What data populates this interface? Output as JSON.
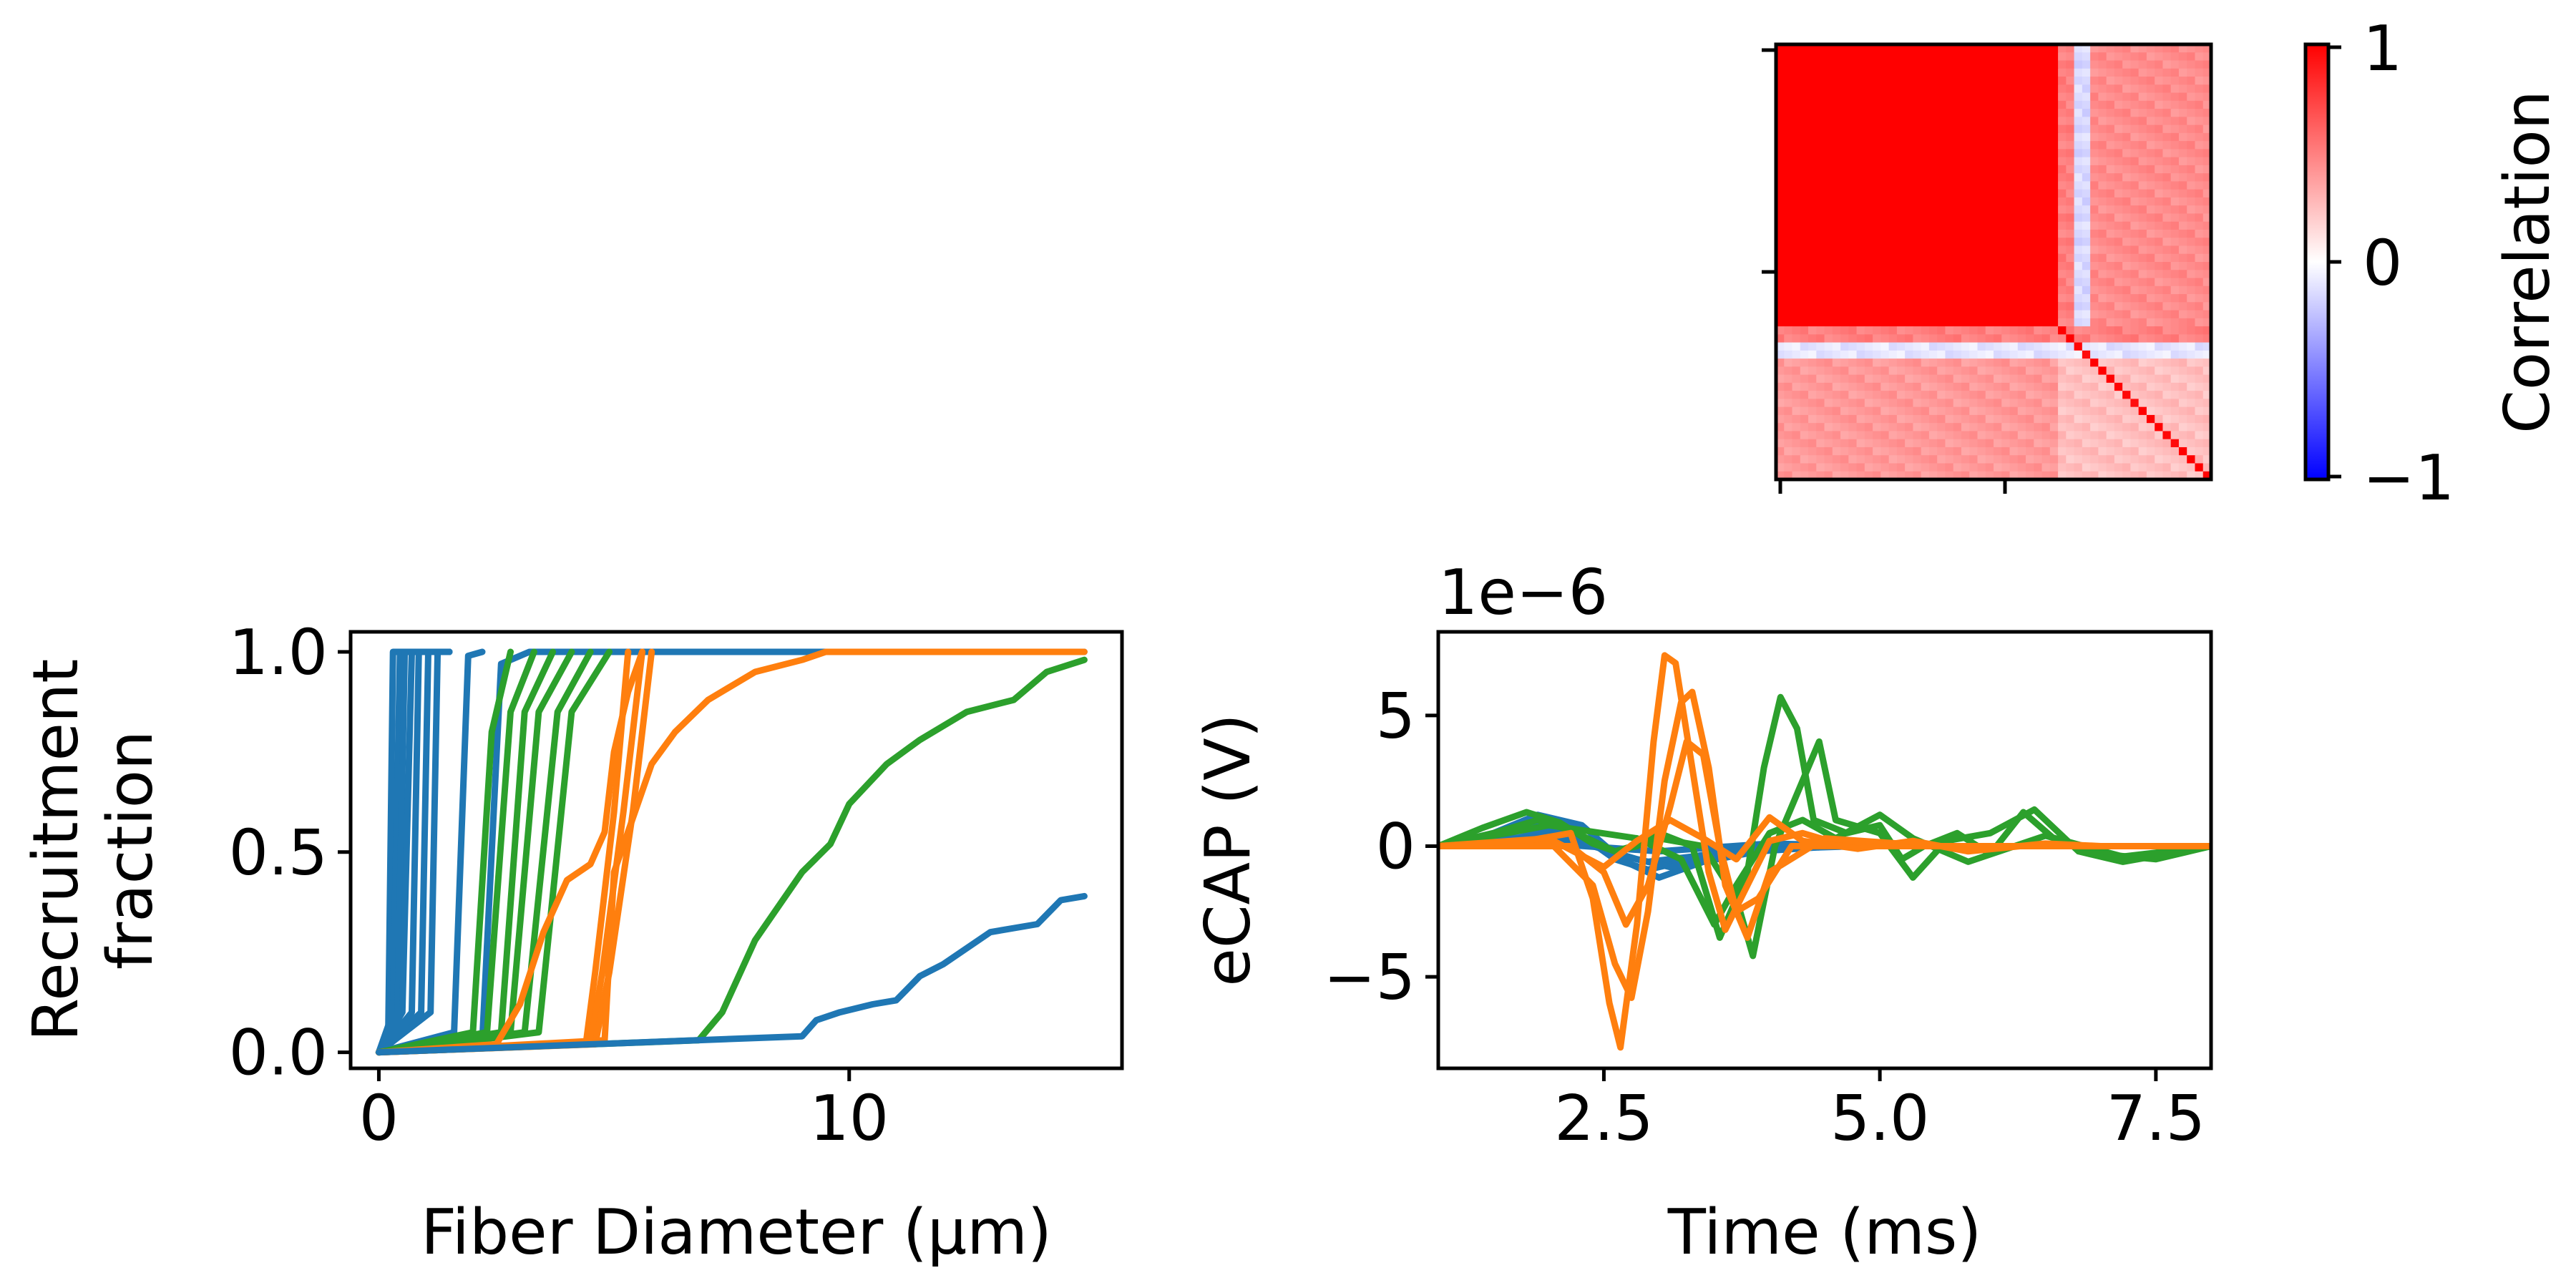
{
  "colors": {
    "blue": "#1f77b4",
    "orange": "#ff7f0e",
    "green": "#2ca02c",
    "corr_high": "#ff0000",
    "corr_zero": "#ffffff",
    "corr_low": "#0000ff"
  },
  "chart_data": [
    {
      "id": "correlation",
      "type": "heatmap",
      "title": "",
      "colorbar": {
        "label": "Correlation",
        "ticks": [
          1,
          0,
          -1
        ],
        "tick_labels": [
          "1",
          "0",
          "−1"
        ],
        "colormap": "bwr",
        "vmin": -1,
        "vmax": 1
      },
      "matrix_size": 54,
      "blocks": [
        {
          "rows": [
            0,
            35
          ],
          "cols": [
            0,
            35
          ],
          "value": 1.0
        },
        {
          "rows": [
            0,
            35
          ],
          "cols": [
            35,
            37
          ],
          "value": 0.5
        },
        {
          "rows": [
            0,
            35
          ],
          "cols": [
            37,
            39
          ],
          "value": -0.15
        },
        {
          "rows": [
            0,
            35
          ],
          "cols": [
            39,
            54
          ],
          "value": 0.45
        },
        {
          "rows": [
            35,
            37
          ],
          "cols": [
            0,
            54
          ],
          "value": 0.5
        },
        {
          "rows": [
            37,
            39
          ],
          "cols": [
            0,
            54
          ],
          "value": -0.1
        },
        {
          "rows": [
            39,
            54
          ],
          "cols": [
            0,
            35
          ],
          "value": 0.4
        },
        {
          "rows": [
            39,
            54
          ],
          "cols": [
            35,
            54
          ],
          "value": 0.25
        }
      ],
      "diagonal": 1.0
    },
    {
      "id": "recruitment",
      "type": "line",
      "xlabel": "Fiber Diameter (μm)",
      "ylabel": [
        "Recruitment",
        "fraction"
      ],
      "xlim": [
        -0.6,
        15.8
      ],
      "ylim": [
        -0.04,
        1.05
      ],
      "xticks": [
        0,
        10
      ],
      "yticks": [
        0.0,
        0.5,
        1.0
      ],
      "ytick_labels": [
        "0.0",
        "0.5",
        "1.0"
      ],
      "series": [
        {
          "color": "blue",
          "x": [
            0.0,
            0.2,
            0.3,
            0.4,
            1.5
          ],
          "y": [
            0.0,
            0.05,
            1.0,
            1.0,
            1.0
          ]
        },
        {
          "color": "blue",
          "x": [
            0.0,
            0.3,
            0.45,
            1.5
          ],
          "y": [
            0.0,
            0.1,
            1.0,
            1.0
          ]
        },
        {
          "color": "blue",
          "x": [
            0.0,
            0.4,
            0.55,
            1.5
          ],
          "y": [
            0.0,
            0.1,
            1.0,
            1.0
          ]
        },
        {
          "color": "blue",
          "x": [
            0.0,
            0.5,
            0.7,
            1.5
          ],
          "y": [
            0.0,
            0.1,
            1.0,
            1.0
          ]
        },
        {
          "color": "blue",
          "x": [
            0.0,
            0.7,
            0.85,
            1.5
          ],
          "y": [
            0.0,
            0.1,
            1.0,
            1.0
          ]
        },
        {
          "color": "blue",
          "x": [
            0.0,
            0.9,
            1.05,
            1.5
          ],
          "y": [
            0.0,
            0.1,
            1.0,
            1.0
          ]
        },
        {
          "color": "blue",
          "x": [
            0.0,
            1.1,
            1.25,
            1.5
          ],
          "y": [
            0.0,
            0.1,
            1.0,
            1.0
          ]
        },
        {
          "color": "blue",
          "x": [
            0.0,
            1.6,
            1.9,
            2.2
          ],
          "y": [
            0.0,
            0.05,
            0.99,
            1.0
          ]
        },
        {
          "color": "blue",
          "x": [
            0.0,
            2.2,
            2.6,
            3.2,
            9.5,
            15.0
          ],
          "y": [
            0.0,
            0.03,
            0.97,
            1.0,
            1.0,
            1.0
          ]
        },
        {
          "color": "green",
          "x": [
            0.0,
            2.0,
            2.4,
            2.8
          ],
          "y": [
            0.0,
            0.05,
            0.8,
            1.0
          ]
        },
        {
          "color": "green",
          "x": [
            0.0,
            2.3,
            2.8,
            3.3
          ],
          "y": [
            0.0,
            0.05,
            0.85,
            1.0
          ]
        },
        {
          "color": "green",
          "x": [
            0.0,
            2.6,
            3.1,
            3.7
          ],
          "y": [
            0.0,
            0.05,
            0.85,
            1.0
          ]
        },
        {
          "color": "green",
          "x": [
            0.0,
            2.8,
            3.4,
            4.1
          ],
          "y": [
            0.0,
            0.05,
            0.85,
            1.0
          ]
        },
        {
          "color": "green",
          "x": [
            0.0,
            3.1,
            3.8,
            4.5
          ],
          "y": [
            0.0,
            0.05,
            0.85,
            1.0
          ]
        },
        {
          "color": "green",
          "x": [
            0.0,
            3.4,
            4.1,
            4.9
          ],
          "y": [
            0.0,
            0.05,
            0.85,
            1.0
          ]
        },
        {
          "color": "green",
          "x": [
            0.0,
            6.8,
            7.3,
            8.0,
            9.0,
            9.6,
            10.0,
            10.8,
            11.5,
            12.5,
            13.5,
            14.2,
            15.0
          ],
          "y": [
            0.0,
            0.03,
            0.1,
            0.28,
            0.45,
            0.52,
            0.62,
            0.72,
            0.78,
            0.85,
            0.88,
            0.95,
            0.98
          ]
        },
        {
          "color": "orange",
          "x": [
            0.0,
            2.5,
            3.0,
            3.5,
            4.0,
            4.5,
            4.8,
            5.0,
            5.3,
            5.6
          ],
          "y": [
            0.0,
            0.02,
            0.12,
            0.3,
            0.43,
            0.47,
            0.55,
            0.75,
            0.9,
            1.0
          ]
        },
        {
          "color": "orange",
          "x": [
            0.0,
            4.4,
            4.6,
            5.0,
            5.3
          ],
          "y": [
            0.0,
            0.02,
            0.2,
            0.6,
            1.0
          ]
        },
        {
          "color": "orange",
          "x": [
            0.0,
            4.5,
            4.75,
            5.2,
            5.6
          ],
          "y": [
            0.0,
            0.02,
            0.2,
            0.6,
            1.0
          ]
        },
        {
          "color": "orange",
          "x": [
            0.0,
            4.6,
            4.9,
            5.4,
            5.8
          ],
          "y": [
            0.0,
            0.02,
            0.2,
            0.6,
            1.0
          ]
        },
        {
          "color": "orange",
          "x": [
            0.0,
            4.8,
            5.0,
            5.8,
            6.3,
            7.0,
            8.0,
            9.0,
            9.5,
            15.0
          ],
          "y": [
            0.0,
            0.03,
            0.45,
            0.72,
            0.8,
            0.88,
            0.95,
            0.98,
            1.0,
            1.0
          ]
        },
        {
          "color": "blue",
          "x": [
            0.0,
            9.0,
            9.3,
            9.8,
            10.5,
            11.0,
            11.5,
            12.0,
            13.0,
            14.0,
            14.5,
            15.0
          ],
          "y": [
            0.0,
            0.04,
            0.08,
            0.1,
            0.12,
            0.13,
            0.19,
            0.22,
            0.3,
            0.32,
            0.38,
            0.39
          ]
        }
      ]
    },
    {
      "id": "ecap",
      "type": "line",
      "xlabel": "Time (ms)",
      "ylabel": "eCAP (V)",
      "offset_label": "1e−6",
      "xlim": [
        1.0,
        8.0
      ],
      "ylim": [
        -8.5,
        8.2
      ],
      "xticks": [
        2.5,
        5.0,
        7.5
      ],
      "xtick_labels": [
        "2.5",
        "5.0",
        "7.5"
      ],
      "yticks": [
        -5,
        0,
        5
      ],
      "ytick_labels": [
        "−5",
        "0",
        "5"
      ],
      "series": [
        {
          "color": "blue",
          "x": [
            1.0,
            1.5,
            1.9,
            2.3,
            2.6,
            2.9,
            3.3,
            3.8,
            4.5,
            5.5,
            8.0
          ],
          "y": [
            0.0,
            0.5,
            1.2,
            0.8,
            -0.3,
            -0.6,
            -0.4,
            -0.1,
            0.0,
            0.0,
            0.0
          ]
        },
        {
          "color": "blue",
          "x": [
            1.0,
            1.5,
            1.9,
            2.3,
            2.6,
            2.9,
            3.3,
            3.8,
            4.5,
            5.5,
            8.0
          ],
          "y": [
            0.0,
            0.3,
            0.8,
            0.4,
            -0.5,
            -0.9,
            -0.5,
            -0.1,
            0.0,
            0.0,
            0.0
          ]
        },
        {
          "color": "blue",
          "x": [
            1.0,
            1.6,
            2.0,
            2.4,
            2.7,
            3.0,
            3.4,
            3.9,
            4.6,
            8.0
          ],
          "y": [
            0.0,
            0.2,
            0.6,
            0.2,
            -0.6,
            -1.2,
            -0.6,
            -0.2,
            0.0,
            0.0
          ]
        },
        {
          "color": "blue",
          "x": [
            1.0,
            1.6,
            2.0,
            2.4,
            2.8,
            3.1,
            3.5,
            4.0,
            4.8,
            8.0
          ],
          "y": [
            0.0,
            0.1,
            0.4,
            0.0,
            -0.5,
            -0.8,
            -0.4,
            -0.1,
            0.0,
            0.0
          ]
        },
        {
          "color": "blue",
          "x": [
            1.0,
            2.0,
            3.0,
            4.0,
            5.0,
            8.0
          ],
          "y": [
            0.0,
            0.1,
            -0.2,
            0.1,
            0.0,
            0.0
          ]
        },
        {
          "color": "green",
          "x": [
            1.0,
            1.4,
            1.8,
            2.1,
            2.4,
            2.6,
            2.8,
            3.0,
            3.3,
            3.55,
            3.8,
            3.95,
            4.1,
            4.25,
            4.4,
            4.7,
            5.0,
            5.2,
            5.4,
            5.7,
            6.0,
            6.3,
            6.6,
            7.0,
            7.5,
            8.0
          ],
          "y": [
            0.0,
            0.7,
            1.3,
            0.9,
            0.1,
            -0.2,
            0.0,
            0.5,
            0.0,
            -3.5,
            -1.0,
            3.0,
            5.7,
            4.5,
            1.0,
            0.5,
            0.8,
            -0.5,
            0.0,
            0.5,
            -0.3,
            1.3,
            0.2,
            -0.3,
            -0.5,
            0.0
          ]
        },
        {
          "color": "green",
          "x": [
            1.0,
            1.5,
            1.9,
            2.2,
            2.6,
            3.0,
            3.4,
            3.7,
            3.85,
            4.05,
            4.3,
            4.45,
            4.6,
            5.0,
            5.3,
            5.6,
            6.0,
            6.4,
            6.8,
            7.2,
            8.0
          ],
          "y": [
            0.0,
            0.5,
            1.0,
            0.6,
            -0.2,
            0.3,
            0.0,
            -2.0,
            -4.2,
            0.0,
            2.5,
            4.0,
            1.0,
            0.5,
            -1.2,
            0.2,
            0.5,
            1.4,
            -0.2,
            -0.6,
            0.0
          ]
        },
        {
          "color": "green",
          "x": [
            1.0,
            2.0,
            2.8,
            3.2,
            3.5,
            3.7,
            4.0,
            4.3,
            4.6,
            5.0,
            5.3,
            5.8,
            6.5,
            7.2,
            8.0
          ],
          "y": [
            0.0,
            0.8,
            0.3,
            -0.5,
            -3.0,
            -1.5,
            0.5,
            1.0,
            0.3,
            1.2,
            0.3,
            -0.6,
            0.4,
            -0.4,
            0.0
          ]
        },
        {
          "color": "orange",
          "x": [
            1.0,
            1.8,
            2.2,
            2.4,
            2.55,
            2.65,
            2.8,
            2.95,
            3.05,
            3.15,
            3.3,
            3.45,
            3.6,
            3.8,
            4.0,
            4.3,
            4.7,
            5.2,
            6.0,
            7.0,
            8.0
          ],
          "y": [
            0.0,
            0.2,
            0.5,
            -2.0,
            -6.0,
            -7.7,
            -3.0,
            4.0,
            7.3,
            7.0,
            3.0,
            -1.0,
            -3.2,
            -1.5,
            0.2,
            0.5,
            0.0,
            0.0,
            0.0,
            0.0,
            0.0
          ]
        },
        {
          "color": "orange",
          "x": [
            1.0,
            2.0,
            2.4,
            2.6,
            2.75,
            2.9,
            3.05,
            3.2,
            3.3,
            3.45,
            3.6,
            3.8,
            4.0,
            4.5,
            5.5,
            8.0
          ],
          "y": [
            0.0,
            0.2,
            -1.5,
            -4.5,
            -5.8,
            -2.5,
            2.5,
            5.5,
            5.9,
            3.0,
            -1.5,
            -3.5,
            -1.0,
            0.3,
            0.0,
            0.0
          ]
        },
        {
          "color": "orange",
          "x": [
            1.0,
            2.2,
            2.5,
            2.7,
            2.9,
            3.1,
            3.25,
            3.4,
            3.55,
            3.7,
            3.9,
            4.2,
            5.0,
            8.0
          ],
          "y": [
            0.0,
            0.0,
            -1.0,
            -3.0,
            -1.5,
            1.5,
            4.0,
            3.5,
            0.0,
            -2.5,
            -2.0,
            0.0,
            0.0,
            0.0
          ]
        },
        {
          "color": "orange",
          "x": [
            1.0,
            2.0,
            2.5,
            2.8,
            3.1,
            3.4,
            3.7,
            4.0,
            4.3,
            4.8,
            5.3,
            5.8,
            6.5,
            7.0,
            8.0
          ],
          "y": [
            0.0,
            0.3,
            -0.8,
            0.2,
            1.0,
            0.3,
            -0.5,
            1.1,
            0.2,
            -0.1,
            0.2,
            -0.2,
            0.1,
            0.0,
            0.0
          ]
        }
      ]
    }
  ]
}
